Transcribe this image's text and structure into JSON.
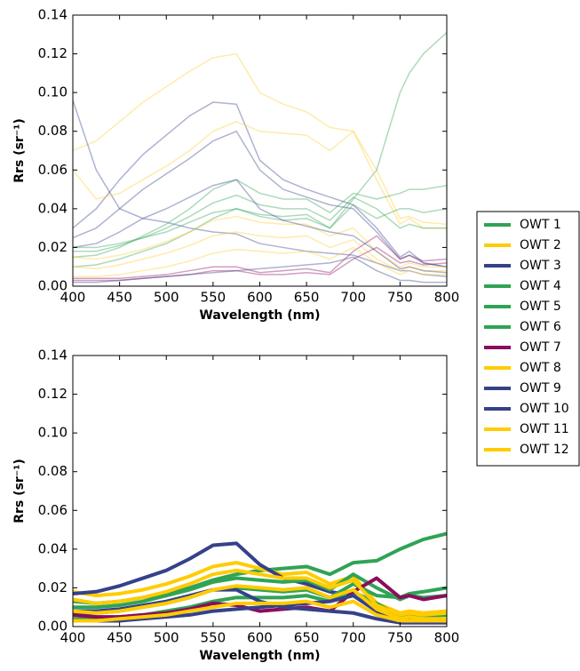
{
  "chart_data": [
    {
      "type": "line",
      "xlabel": "Wavelength (nm)",
      "ylabel": "Rrs (sr⁻¹)",
      "alpha": 0.4,
      "x": [
        400,
        425,
        450,
        475,
        500,
        525,
        550,
        575,
        600,
        625,
        650,
        675,
        700,
        725,
        750,
        760,
        775,
        800
      ],
      "xlim": [
        400,
        800
      ],
      "xticks": [
        400,
        450,
        500,
        550,
        600,
        650,
        700,
        750,
        800
      ],
      "ylim": [
        0,
        0.14
      ],
      "yticks": [
        {
          "value": 0,
          "label": "0.00"
        },
        {
          "value": 0.02,
          "label": "0.02"
        },
        {
          "value": 0.04,
          "label": "0.04"
        },
        {
          "value": 0.06,
          "label": "0.06"
        },
        {
          "value": 0.08,
          "label": "0.08"
        },
        {
          "value": 0.1,
          "label": "0.10"
        },
        {
          "value": 0.12,
          "label": "0.12"
        },
        {
          "value": 0.14,
          "label": "0.14"
        }
      ],
      "series": [
        {
          "color": "#ffcc33",
          "values": [
            0.07,
            0.075,
            0.085,
            0.095,
            0.103,
            0.111,
            0.118,
            0.12,
            0.1,
            0.094,
            0.09,
            0.082,
            0.08,
            0.06,
            0.035,
            0.036,
            0.033,
            0.032
          ]
        },
        {
          "color": "#35428a",
          "values": [
            0.03,
            0.04,
            0.055,
            0.068,
            0.078,
            0.088,
            0.095,
            0.094,
            0.065,
            0.055,
            0.05,
            0.046,
            0.042,
            0.03,
            0.015,
            0.018,
            0.012,
            0.01
          ]
        },
        {
          "color": "#35428a",
          "values": [
            0.096,
            0.06,
            0.04,
            0.035,
            0.033,
            0.03,
            0.028,
            0.027,
            0.022,
            0.02,
            0.018,
            0.017,
            0.016,
            0.012,
            0.008,
            0.008,
            0.006,
            0.005
          ]
        },
        {
          "color": "#31a354",
          "values": [
            0.02,
            0.02,
            0.022,
            0.025,
            0.028,
            0.033,
            0.038,
            0.04,
            0.036,
            0.034,
            0.035,
            0.03,
            0.045,
            0.06,
            0.1,
            0.11,
            0.12,
            0.131
          ]
        },
        {
          "color": "#ffcc33",
          "values": [
            0.06,
            0.045,
            0.048,
            0.055,
            0.062,
            0.07,
            0.08,
            0.085,
            0.08,
            0.079,
            0.078,
            0.07,
            0.08,
            0.055,
            0.032,
            0.035,
            0.03,
            0.03
          ]
        },
        {
          "color": "#35428a",
          "values": [
            0.025,
            0.03,
            0.04,
            0.05,
            0.058,
            0.066,
            0.075,
            0.08,
            0.06,
            0.05,
            0.046,
            0.042,
            0.04,
            0.028,
            0.014,
            0.016,
            0.012,
            0.01
          ]
        },
        {
          "color": "#31a354",
          "values": [
            0.015,
            0.016,
            0.02,
            0.026,
            0.032,
            0.04,
            0.05,
            0.055,
            0.048,
            0.045,
            0.045,
            0.038,
            0.048,
            0.045,
            0.048,
            0.05,
            0.05,
            0.052
          ]
        },
        {
          "color": "#31a354",
          "values": [
            0.01,
            0.011,
            0.014,
            0.018,
            0.022,
            0.028,
            0.035,
            0.04,
            0.037,
            0.036,
            0.037,
            0.03,
            0.042,
            0.035,
            0.04,
            0.04,
            0.038,
            0.04
          ]
        },
        {
          "color": "#ffcc33",
          "values": [
            0.015,
            0.014,
            0.016,
            0.019,
            0.023,
            0.028,
            0.034,
            0.036,
            0.033,
            0.032,
            0.032,
            0.026,
            0.03,
            0.018,
            0.01,
            0.012,
            0.01,
            0.01
          ]
        },
        {
          "color": "#ffcc33",
          "values": [
            0.01,
            0.009,
            0.011,
            0.014,
            0.017,
            0.021,
            0.026,
            0.028,
            0.026,
            0.025,
            0.026,
            0.02,
            0.024,
            0.014,
            0.008,
            0.01,
            0.008,
            0.008
          ]
        },
        {
          "color": "#8b0d5e",
          "values": [
            0.004,
            0.004,
            0.004,
            0.005,
            0.006,
            0.008,
            0.01,
            0.01,
            0.007,
            0.008,
            0.009,
            0.007,
            0.018,
            0.026,
            0.014,
            0.016,
            0.013,
            0.014
          ]
        },
        {
          "color": "#8b0d5e",
          "values": [
            0.003,
            0.003,
            0.003,
            0.004,
            0.005,
            0.006,
            0.008,
            0.008,
            0.006,
            0.006,
            0.007,
            0.006,
            0.014,
            0.02,
            0.012,
            0.013,
            0.011,
            0.012
          ]
        },
        {
          "color": "#35428a",
          "values": [
            0.02,
            0.022,
            0.028,
            0.035,
            0.04,
            0.046,
            0.052,
            0.055,
            0.04,
            0.034,
            0.031,
            0.028,
            0.026,
            0.018,
            0.009,
            0.01,
            0.008,
            0.007
          ]
        },
        {
          "color": "#31a354",
          "values": [
            0.018,
            0.018,
            0.021,
            0.025,
            0.03,
            0.036,
            0.043,
            0.047,
            0.042,
            0.04,
            0.04,
            0.034,
            0.046,
            0.04,
            0.03,
            0.032,
            0.03,
            0.03
          ]
        },
        {
          "color": "#35428a",
          "values": [
            0.002,
            0.002,
            0.003,
            0.004,
            0.005,
            0.006,
            0.007,
            0.008,
            0.009,
            0.01,
            0.011,
            0.012,
            0.015,
            0.008,
            0.003,
            0.003,
            0.002,
            0.002
          ]
        },
        {
          "color": "#ffcc33",
          "values": [
            0.005,
            0.005,
            0.006,
            0.008,
            0.01,
            0.013,
            0.017,
            0.019,
            0.018,
            0.017,
            0.018,
            0.014,
            0.02,
            0.012,
            0.006,
            0.008,
            0.006,
            0.006
          ]
        }
      ]
    },
    {
      "type": "line",
      "xlabel": "Wavelength (nm)",
      "ylabel": "Rrs (sr⁻¹)",
      "legend": "right",
      "x": [
        400,
        425,
        450,
        475,
        500,
        525,
        550,
        575,
        600,
        625,
        650,
        675,
        700,
        725,
        750,
        760,
        775,
        800
      ],
      "xlim": [
        400,
        800
      ],
      "xticks": [
        400,
        450,
        500,
        550,
        600,
        650,
        700,
        750,
        800
      ],
      "ylim": [
        0,
        0.14
      ],
      "yticks": [
        {
          "value": 0,
          "label": "0.00"
        },
        {
          "value": 0.02,
          "label": "0.02"
        },
        {
          "value": 0.04,
          "label": "0.04"
        },
        {
          "value": 0.06,
          "label": "0.06"
        },
        {
          "value": 0.08,
          "label": "0.08"
        },
        {
          "value": 0.1,
          "label": "0.10"
        },
        {
          "value": 0.12,
          "label": "0.12"
        },
        {
          "value": 0.14,
          "label": "0.14"
        }
      ],
      "series": [
        {
          "name": "OWT 1",
          "color": "#31a354",
          "values": [
            0.013,
            0.012,
            0.013,
            0.015,
            0.017,
            0.02,
            0.024,
            0.027,
            0.029,
            0.03,
            0.031,
            0.027,
            0.033,
            0.034,
            0.04,
            0.042,
            0.045,
            0.048
          ]
        },
        {
          "name": "OWT 2",
          "color": "#ffcc00",
          "values": [
            0.018,
            0.016,
            0.017,
            0.019,
            0.022,
            0.026,
            0.031,
            0.033,
            0.03,
            0.027,
            0.028,
            0.022,
            0.026,
            0.012,
            0.007,
            0.008,
            0.007,
            0.008
          ]
        },
        {
          "name": "OWT 3",
          "color": "#35428a",
          "values": [
            0.017,
            0.018,
            0.021,
            0.025,
            0.029,
            0.035,
            0.042,
            0.043,
            0.032,
            0.025,
            0.022,
            0.018,
            0.016,
            0.008,
            0.004,
            0.004,
            0.003,
            0.003
          ]
        },
        {
          "name": "OWT 4",
          "color": "#31a354",
          "values": [
            0.01,
            0.01,
            0.011,
            0.013,
            0.016,
            0.019,
            0.023,
            0.025,
            0.024,
            0.023,
            0.024,
            0.019,
            0.027,
            0.02,
            0.014,
            0.016,
            0.015,
            0.016
          ]
        },
        {
          "name": "OWT 5",
          "color": "#31a354",
          "values": [
            0.007,
            0.007,
            0.008,
            0.01,
            0.012,
            0.015,
            0.019,
            0.02,
            0.019,
            0.018,
            0.019,
            0.015,
            0.022,
            0.016,
            0.015,
            0.017,
            0.018,
            0.02
          ]
        },
        {
          "name": "OWT 6",
          "color": "#31a354",
          "values": [
            0.004,
            0.004,
            0.005,
            0.006,
            0.008,
            0.01,
            0.013,
            0.015,
            0.015,
            0.015,
            0.016,
            0.013,
            0.018,
            0.012,
            0.005,
            0.006,
            0.005,
            0.006
          ]
        },
        {
          "name": "OWT 7",
          "color": "#8b0d5e",
          "values": [
            0.006,
            0.005,
            0.005,
            0.006,
            0.007,
            0.009,
            0.012,
            0.011,
            0.008,
            0.009,
            0.01,
            0.008,
            0.018,
            0.025,
            0.015,
            0.016,
            0.014,
            0.016
          ]
        },
        {
          "name": "OWT 8",
          "color": "#ffcc00",
          "values": [
            0.014,
            0.012,
            0.013,
            0.015,
            0.018,
            0.022,
            0.027,
            0.029,
            0.027,
            0.025,
            0.025,
            0.02,
            0.024,
            0.011,
            0.006,
            0.007,
            0.006,
            0.007
          ]
        },
        {
          "name": "OWT 9",
          "color": "#35428a",
          "values": [
            0.003,
            0.003,
            0.003,
            0.004,
            0.005,
            0.006,
            0.008,
            0.009,
            0.01,
            0.011,
            0.012,
            0.013,
            0.016,
            0.008,
            0.002,
            0.002,
            0.002,
            0.002
          ]
        },
        {
          "name": "OWT 10",
          "color": "#35428a",
          "values": [
            0.008,
            0.008,
            0.009,
            0.011,
            0.013,
            0.016,
            0.019,
            0.019,
            0.013,
            0.01,
            0.009,
            0.008,
            0.007,
            0.004,
            0.002,
            0.002,
            0.002,
            0.002
          ]
        },
        {
          "name": "OWT 11",
          "color": "#ffcc00",
          "values": [
            0.008,
            0.007,
            0.008,
            0.01,
            0.012,
            0.015,
            0.019,
            0.021,
            0.02,
            0.019,
            0.02,
            0.015,
            0.019,
            0.009,
            0.004,
            0.005,
            0.004,
            0.004
          ]
        },
        {
          "name": "OWT 12",
          "color": "#ffcc00",
          "values": [
            0.003,
            0.003,
            0.004,
            0.005,
            0.006,
            0.008,
            0.01,
            0.012,
            0.012,
            0.012,
            0.013,
            0.01,
            0.013,
            0.006,
            0.003,
            0.003,
            0.003,
            0.003
          ]
        }
      ]
    }
  ]
}
